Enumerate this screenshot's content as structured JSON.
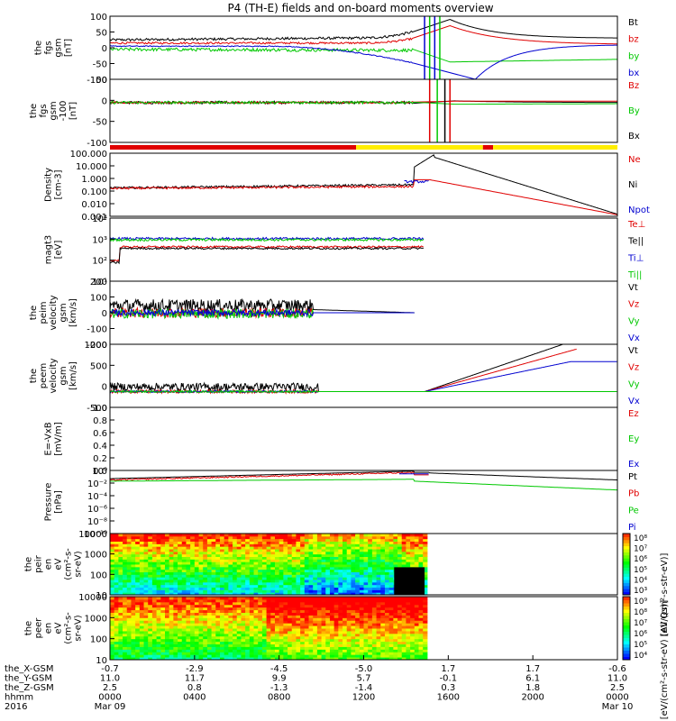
{
  "chart_data": {
    "type": "line",
    "title": "P4 (TH-E) fields and on-board moments overview",
    "year": "2016",
    "colors": {
      "black": "#000000",
      "red": "#e00000",
      "green": "#00c800",
      "blue": "#0000d0",
      "yellow": "#ffee00"
    },
    "x_ticks": [
      "0000",
      "0400",
      "0800",
      "1200",
      "1600",
      "2000",
      "0000"
    ],
    "date_labels": [
      {
        "at": "0000",
        "text": "Mar 09"
      },
      {
        "at": "0000",
        "text": "Mar 10"
      }
    ],
    "bottom_rows": [
      {
        "label": "the_X-GSM",
        "values": [
          "-0.7",
          "-2.9",
          "-4.5",
          "-5.0",
          "1.7",
          "1.7",
          "-0.6"
        ]
      },
      {
        "label": "the_Y-GSM",
        "values": [
          "11.0",
          "11.7",
          "9.9",
          "5.7",
          "-0.1",
          "6.1",
          "11.0"
        ]
      },
      {
        "label": "the_Z-GSM",
        "values": [
          "2.5",
          "0.8",
          "-1.3",
          "-1.4",
          "0.3",
          "1.8",
          "2.5"
        ]
      },
      {
        "label": "hhmm",
        "values": [
          "0000",
          "0400",
          "0800",
          "1200",
          "1600",
          "2000",
          "0000"
        ]
      }
    ],
    "panels": [
      {
        "id": "fgs",
        "ylabel": [
          "the",
          "fgs",
          "gsm",
          "[nT]"
        ],
        "ylim": [
          -100,
          100
        ],
        "yticks": [
          "100",
          "50",
          "0",
          "-50",
          "-100"
        ],
        "legend": [
          {
            "text": "Bt",
            "color": "black"
          },
          {
            "text": "bz",
            "color": "red"
          },
          {
            "text": "by",
            "color": "green"
          },
          {
            "text": "bx",
            "color": "blue"
          }
        ]
      },
      {
        "id": "fgs_dsl",
        "ylabel": [
          "the",
          "fgs",
          "gsm",
          "-100",
          "[nT]"
        ],
        "ylim": [
          -120,
          70
        ],
        "yticks": [
          "50",
          "0",
          "-50",
          "-100"
        ],
        "legend": [
          {
            "text": "Bz",
            "color": "red"
          },
          {
            "text": "By",
            "color": "green"
          },
          {
            "text": "Bx",
            "color": "black"
          }
        ]
      },
      {
        "id": "density",
        "ylabel": [
          "Density",
          "[cm-3]"
        ],
        "scale": "log",
        "ylim": [
          0.001,
          1000
        ],
        "yticks": [
          "100.000",
          "10.000",
          "1.000",
          "0.100",
          "0.010",
          "0.001"
        ],
        "legend": [
          {
            "text": "Ne",
            "color": "red"
          },
          {
            "text": "Ni",
            "color": "black"
          },
          {
            "text": "Npot",
            "color": "blue"
          }
        ]
      },
      {
        "id": "temp",
        "ylabel": [
          "magt3",
          "[eV]"
        ],
        "scale": "log",
        "ylim": [
          10,
          100000
        ],
        "yticks": [
          "10⁴",
          "10³",
          "10²",
          "10¹"
        ],
        "legend": [
          {
            "text": "Te⊥",
            "color": "red"
          },
          {
            "text": "Te||",
            "color": "black"
          },
          {
            "text": "Ti⊥",
            "color": "blue"
          },
          {
            "text": "Ti||",
            "color": "green"
          }
        ]
      },
      {
        "id": "peim_vel",
        "ylabel": [
          "the",
          "peim",
          "velocity",
          "gsm",
          "[km/s]"
        ],
        "ylim": [
          -200,
          200
        ],
        "yticks": [
          "200",
          "100",
          "0",
          "-100",
          "-200"
        ],
        "legend": [
          {
            "text": "Vt",
            "color": "black"
          },
          {
            "text": "Vz",
            "color": "red"
          },
          {
            "text": "Vy",
            "color": "green"
          },
          {
            "text": "Vx",
            "color": "blue"
          }
        ]
      },
      {
        "id": "peem_vel",
        "ylabel": [
          "the",
          "peem",
          "velocity",
          "gsm",
          "[km/s]"
        ],
        "ylim": [
          -500,
          1500
        ],
        "yticks": [
          "1000",
          "500",
          "0",
          "-500"
        ],
        "legend": [
          {
            "text": "Vt",
            "color": "black"
          },
          {
            "text": "Vz",
            "color": "red"
          },
          {
            "text": "Vy",
            "color": "green"
          },
          {
            "text": "Vx",
            "color": "blue"
          }
        ]
      },
      {
        "id": "efield",
        "ylabel": [
          "E=-VxB",
          "[mV/m]"
        ],
        "ylim": [
          0,
          1
        ],
        "yticks": [
          "1.0",
          "0.8",
          "0.6",
          "0.4",
          "0.2",
          "0.0"
        ],
        "legend": [
          {
            "text": "Ez",
            "color": "red"
          },
          {
            "text": "Ey",
            "color": "green"
          },
          {
            "text": "Ex",
            "color": "blue"
          }
        ]
      },
      {
        "id": "pressure",
        "ylabel": [
          "Pressure",
          "[nPa]"
        ],
        "scale": "log",
        "ylim": [
          1e-10,
          1
        ],
        "yticks": [
          "10⁰",
          "10⁻²",
          "10⁻⁴",
          "10⁻⁶",
          "10⁻⁸",
          "10⁻¹⁰"
        ],
        "legend": [
          {
            "text": "Pt",
            "color": "black"
          },
          {
            "text": "Pb",
            "color": "red"
          },
          {
            "text": "Pe",
            "color": "green"
          },
          {
            "text": "Pi",
            "color": "blue"
          }
        ]
      },
      {
        "id": "peir_spec",
        "ylabel": [
          "the",
          "peir",
          "en",
          "eV",
          "(cm²-s-",
          "sr-eV)"
        ],
        "scale": "log",
        "ylim": [
          5,
          20000
        ],
        "yticks": [
          "10000",
          "1000",
          "100",
          "10"
        ],
        "colorbar": {
          "ticks": [
            "10⁸",
            "10⁷",
            "10⁶",
            "10⁵",
            "10⁴",
            "10³"
          ],
          "label": "[eV/(cm²-s-str-eV)]"
        }
      },
      {
        "id": "peer_spec",
        "ylabel": [
          "the",
          "peer",
          "en",
          "eV",
          "(cm²-s-",
          "sr-eV)"
        ],
        "scale": "log",
        "ylim": [
          5,
          20000
        ],
        "yticks": [
          "10000",
          "1000",
          "100",
          "10"
        ],
        "colorbar": {
          "ticks": [
            "10⁹",
            "10⁸",
            "10⁷",
            "10⁶",
            "10⁵",
            "10⁴"
          ],
          "label": "[eV/(cm²-s-str-eV) (All Qs)]"
        }
      }
    ],
    "mode_bar": {
      "segments": [
        {
          "from": 0,
          "to": 0.485,
          "color": "red"
        },
        {
          "from": 0.485,
          "to": 0.735,
          "color": "yellow"
        },
        {
          "from": 0.735,
          "to": 0.755,
          "color": "red"
        },
        {
          "from": 0.755,
          "to": 1,
          "color": "yellow"
        }
      ]
    }
  }
}
